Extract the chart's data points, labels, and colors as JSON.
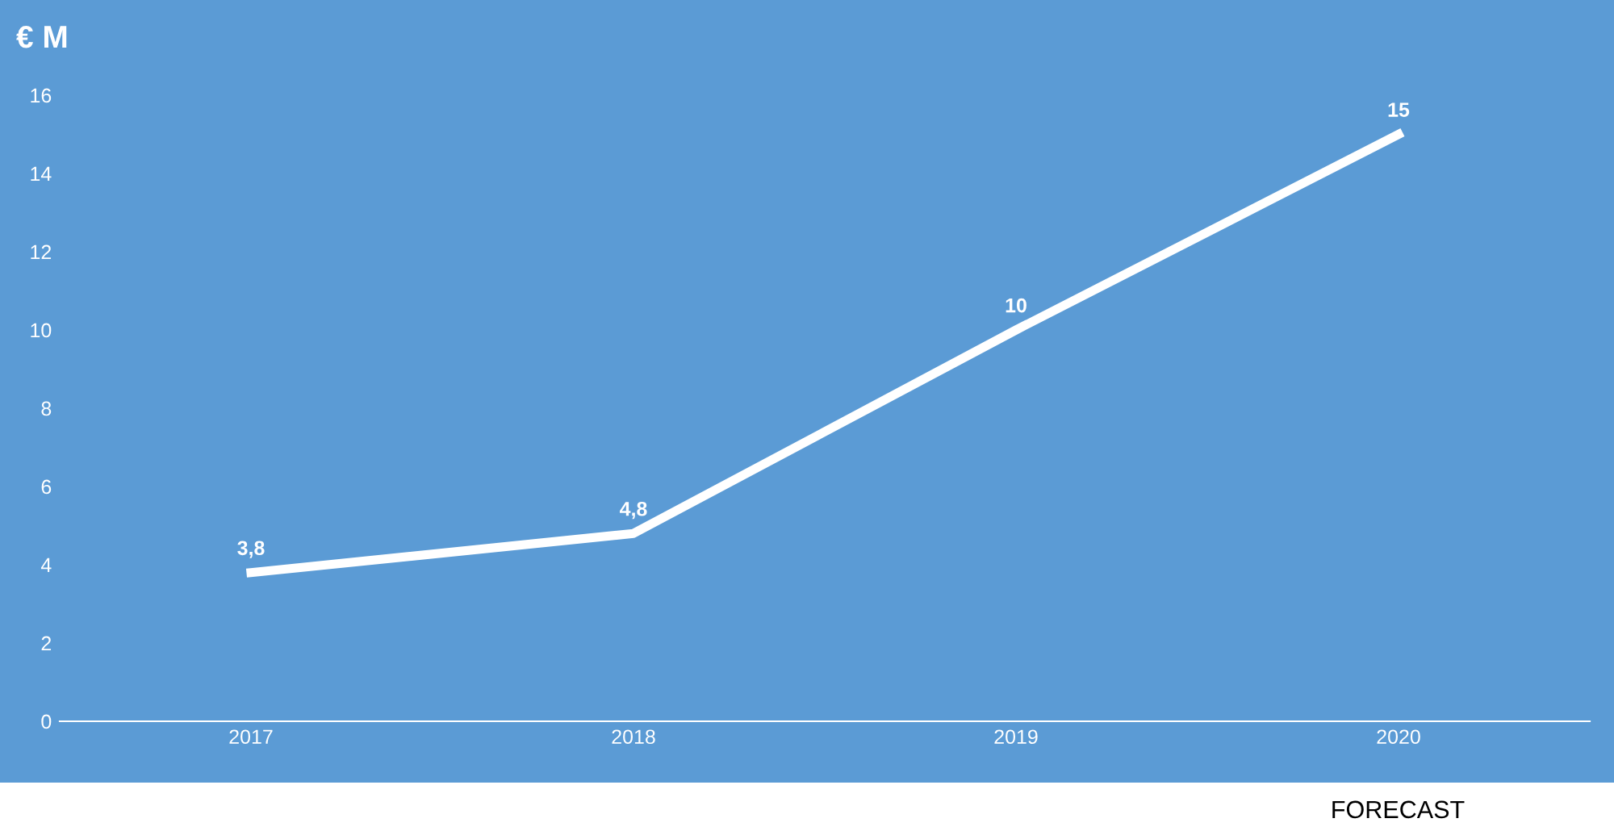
{
  "chart_data": {
    "type": "line",
    "ylabel": "€ M",
    "categories": [
      "2017",
      "2018",
      "2019",
      "2020"
    ],
    "series": [
      {
        "color": "#ffffff",
        "values": [
          3.8,
          4.8,
          10,
          15
        ],
        "value_labels": [
          "3,8",
          "4,8",
          "10",
          "15"
        ]
      }
    ],
    "ylim": [
      0,
      16
    ],
    "yticks": [
      0,
      2,
      4,
      6,
      8,
      10,
      12,
      14,
      16
    ],
    "grid": false,
    "marker": "none",
    "line_style": "solid",
    "annotations": [
      "FORECAST"
    ]
  }
}
